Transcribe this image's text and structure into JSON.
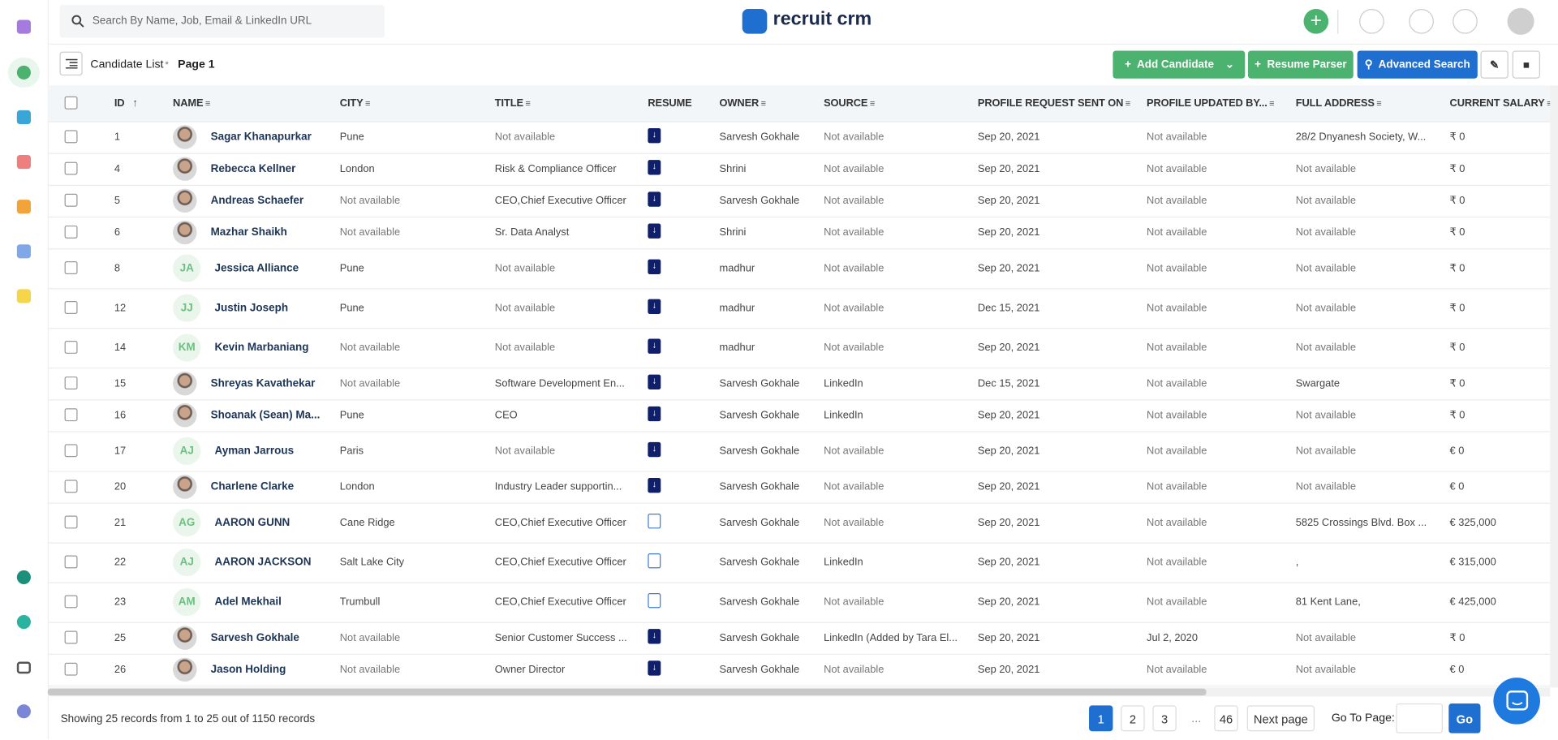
{
  "header": {
    "search_placeholder": "Search By Name, Job, Email & LinkedIn URL",
    "logo": "recruit crm"
  },
  "toolbar": {
    "breadcrumb": "Candidate List",
    "page": "Page 1",
    "add_candidate": "Add Candidate",
    "resume_parser": "Resume Parser",
    "advanced_search": "Advanced Search"
  },
  "table": {
    "columns": [
      "ID",
      "NAME",
      "CITY",
      "TITLE",
      "RESUME",
      "OWNER",
      "SOURCE",
      "PROFILE REQUEST SENT ON",
      "PROFILE UPDATED BY...",
      "FULL ADDRESS",
      "CURRENT SALARY"
    ],
    "rows": [
      {
        "id": "1",
        "name": "Sagar Khanapurkar",
        "city": "Pune",
        "title": "Not available",
        "has_resume": true,
        "owner": "Sarvesh Gokhale",
        "source": "Not available",
        "request_sent": "Sep 20, 2021",
        "updated_by": "Not available",
        "address": "28/2 Dnyanesh Society, W...",
        "salary": "₹ 0"
      },
      {
        "id": "4",
        "name": "Rebecca Kellner",
        "city": "London",
        "title": "Risk & Compliance Officer",
        "has_resume": true,
        "owner": "Shrini",
        "source": "Not available",
        "request_sent": "Sep 20, 2021",
        "updated_by": "Not available",
        "address": "Not available",
        "salary": "₹ 0"
      },
      {
        "id": "5",
        "name": "Andreas Schaefer",
        "city": "Not available",
        "title": "CEO,Chief Executive Officer",
        "has_resume": true,
        "owner": "Sarvesh Gokhale",
        "source": "Not available",
        "request_sent": "Sep 20, 2021",
        "updated_by": "Not available",
        "address": "Not available",
        "salary": "₹ 0"
      },
      {
        "id": "6",
        "name": "Mazhar Shaikh",
        "city": "Not available",
        "title": "Sr. Data Analyst",
        "has_resume": true,
        "owner": "Shrini",
        "source": "Not available",
        "request_sent": "Sep 20, 2021",
        "updated_by": "Not available",
        "address": "Not available",
        "salary": "₹ 0"
      },
      {
        "id": "8",
        "name": "Jessica Alliance",
        "initials": "JA",
        "city": "Pune",
        "title": "Not available",
        "has_resume": true,
        "owner": "madhur",
        "source": "Not available",
        "request_sent": "Sep 20, 2021",
        "updated_by": "Not available",
        "address": "Not available",
        "salary": "₹ 0"
      },
      {
        "id": "12",
        "name": "Justin Joseph",
        "initials": "JJ",
        "city": "Pune",
        "title": "Not available",
        "has_resume": true,
        "owner": "madhur",
        "source": "Not available",
        "request_sent": "Dec 15, 2021",
        "updated_by": "Not available",
        "address": "Not available",
        "salary": "₹ 0"
      },
      {
        "id": "14",
        "name": "Kevin Marbaniang",
        "initials": "KM",
        "city": "Not available",
        "title": "Not available",
        "has_resume": true,
        "owner": "madhur",
        "source": "Not available",
        "request_sent": "Sep 20, 2021",
        "updated_by": "Not available",
        "address": "Not available",
        "salary": "₹ 0"
      },
      {
        "id": "15",
        "name": "Shreyas Kavathekar",
        "city": "Not available",
        "title": "Software Development En...",
        "has_resume": true,
        "owner": "Sarvesh Gokhale",
        "source": "LinkedIn",
        "request_sent": "Dec 15, 2021",
        "updated_by": "Not available",
        "address": "Swargate",
        "salary": "₹ 0"
      },
      {
        "id": "16",
        "name": "Shoanak (Sean) Ma...",
        "city": "Pune",
        "title": "CEO",
        "has_resume": true,
        "owner": "Sarvesh Gokhale",
        "source": "LinkedIn",
        "request_sent": "Sep 20, 2021",
        "updated_by": "Not available",
        "address": "Not available",
        "salary": "₹ 0"
      },
      {
        "id": "17",
        "name": "Ayman Jarrous",
        "initials": "AJ",
        "city": "Paris",
        "title": "Not available",
        "has_resume": true,
        "owner": "Sarvesh Gokhale",
        "source": "Not available",
        "request_sent": "Sep 20, 2021",
        "updated_by": "Not available",
        "address": "Not available",
        "salary": "€ 0"
      },
      {
        "id": "20",
        "name": "Charlene Clarke",
        "city": "London",
        "title": "Industry Leader supportin...",
        "has_resume": true,
        "owner": "Sarvesh Gokhale",
        "source": "Not available",
        "request_sent": "Sep 20, 2021",
        "updated_by": "Not available",
        "address": "Not available",
        "salary": "€ 0"
      },
      {
        "id": "21",
        "name": "AARON GUNN",
        "initials": "AG",
        "city": "Cane Ridge",
        "title": "CEO,Chief Executive Officer",
        "has_resume": false,
        "owner": "Sarvesh Gokhale",
        "source": "Not available",
        "request_sent": "Sep 20, 2021",
        "updated_by": "Not available",
        "address": "5825 Crossings Blvd. Box ...",
        "salary": "€ 325,000"
      },
      {
        "id": "22",
        "name": "AARON JACKSON",
        "initials": "AJ",
        "city": "Salt Lake City",
        "title": "CEO,Chief Executive Officer",
        "has_resume": false,
        "owner": "Sarvesh Gokhale",
        "source": "LinkedIn",
        "request_sent": "Sep 20, 2021",
        "updated_by": "Not available",
        "address": ",",
        "salary": "€ 315,000"
      },
      {
        "id": "23",
        "name": "Adel Mekhail",
        "initials": "AM",
        "city": "Trumbull",
        "title": "CEO,Chief Executive Officer",
        "has_resume": false,
        "owner": "Sarvesh Gokhale",
        "source": "Not available",
        "request_sent": "Sep 20, 2021",
        "updated_by": "Not available",
        "address": "81 Kent Lane,",
        "salary": "€ 425,000"
      },
      {
        "id": "25",
        "name": "Sarvesh Gokhale",
        "city": "Not available",
        "title": "Senior Customer Success ...",
        "has_resume": true,
        "owner": "Sarvesh Gokhale",
        "source": "LinkedIn (Added by Tara El...",
        "request_sent": "Sep 20, 2021",
        "updated_by": "Jul 2, 2020",
        "address": "Not available",
        "salary": "₹ 0"
      },
      {
        "id": "26",
        "name": "Jason Holding",
        "city": "Not available",
        "title": "Owner Director",
        "has_resume": true,
        "owner": "Sarvesh Gokhale",
        "source": "Not available",
        "request_sent": "Sep 20, 2021",
        "updated_by": "Not available",
        "address": "Not available",
        "salary": "€ 0"
      }
    ]
  },
  "footer": {
    "summary": "Showing 25 records from 1 to 25 out of 1150 records",
    "pages": [
      "1",
      "2",
      "3",
      "...",
      "46"
    ],
    "next": "Next page",
    "goto": "Go To Page:",
    "go": "Go"
  }
}
